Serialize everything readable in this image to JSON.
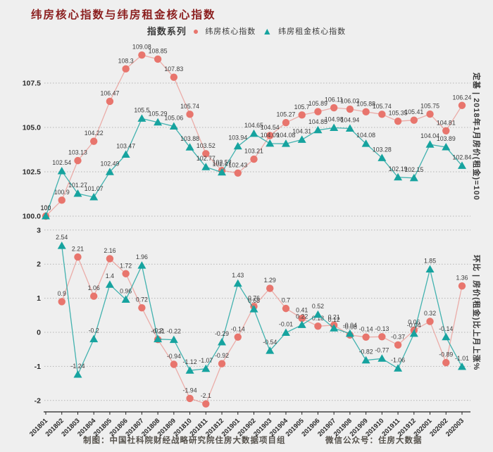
{
  "title": "纬房核心指数与纬房租金核心指数",
  "legend": {
    "label": "指数系列",
    "series": [
      {
        "name": "纬房核心指数",
        "marker": "circle-icon",
        "color": "#e8756d"
      },
      {
        "name": "纬房租金核心指数",
        "marker": "triangle-icon",
        "color": "#16a39f"
      }
    ]
  },
  "colors": {
    "background": "#efefef",
    "core": "#e8756d",
    "rent": "#16a39f",
    "grid": "#b5b5b5",
    "title": "#8b1e1e",
    "tick_text": "#2b2b2b",
    "value_label": "#3d3d3d"
  },
  "footer": {
    "left": "制图：中国社科院财经战略研究院住房大数据项目组",
    "right": "微信公众号：住房大数据"
  },
  "chart_data": [
    {
      "type": "line",
      "panel": "index",
      "right_label": "定基 | 2018年1月房价(租金)=100",
      "grid": "dotted",
      "legend_position": "top",
      "yticks": [
        "100.0",
        "102.5",
        "105.0",
        "107.5"
      ],
      "ylim": [
        99.5,
        109.8
      ],
      "x": [
        "201801",
        "201802",
        "201803",
        "201804",
        "201805",
        "201806",
        "201807",
        "201808",
        "201809",
        "201810",
        "201811",
        "201812",
        "201901",
        "201902",
        "201903",
        "201904",
        "201905",
        "201906",
        "201907",
        "201908",
        "201909",
        "201910",
        "201911",
        "201912",
        "202001",
        "202002",
        "202003"
      ],
      "series": [
        {
          "name": "纬房核心指数",
          "values": [
            100,
            100.9,
            103.13,
            104.22,
            106.47,
            108.3,
            109.08,
            108.85,
            107.83,
            105.74,
            103.52,
            102.57,
            102.43,
            103.21,
            104.54,
            105.27,
            105.7,
            105.89,
            106.11,
            106.03,
            105.88,
            105.74,
            105.35,
            105.41,
            105.75,
            104.81,
            106.24
          ]
        },
        {
          "name": "纬房租金核心指数",
          "values": [
            100,
            102.54,
            101.27,
            101.07,
            102.49,
            103.47,
            105.5,
            105.29,
            105.06,
            103.88,
            102.77,
            102.47,
            103.94,
            104.65,
            104.09,
            104.08,
            104.31,
            104.85,
            104.98,
            104.94,
            104.08,
            103.28,
            102.19,
            102.15,
            104.04,
            103.89,
            102.84
          ]
        }
      ]
    },
    {
      "type": "line",
      "panel": "mom",
      "right_label": "环比 | 房价(租金)比上月上涨%",
      "grid": "dotted",
      "yticks": [
        "-2",
        "-1",
        "0",
        "1",
        "2",
        "3"
      ],
      "ylim": [
        -2.4,
        3.2
      ],
      "x": [
        "201801",
        "201802",
        "201803",
        "201804",
        "201805",
        "201806",
        "201807",
        "201808",
        "201809",
        "201810",
        "201811",
        "201812",
        "201901",
        "201902",
        "201903",
        "201904",
        "201905",
        "201906",
        "201907",
        "201908",
        "201909",
        "201910",
        "201911",
        "201912",
        "202001",
        "202002",
        "202003"
      ],
      "series": [
        {
          "name": "纬房核心指数",
          "values": [
            null,
            0.9,
            2.21,
            1.06,
            2.16,
            1.72,
            0.72,
            -0.21,
            -0.94,
            -1.94,
            -2.1,
            -0.92,
            -0.14,
            0.76,
            1.29,
            0.7,
            0.41,
            0.18,
            0.21,
            -0.08,
            -0.14,
            -0.13,
            -0.37,
            0.06,
            0.32,
            -0.89,
            1.36
          ]
        },
        {
          "name": "纬房租金核心指数",
          "values": [
            null,
            2.54,
            -1.24,
            -0.2,
            1.4,
            0.96,
            1.96,
            -0.2,
            -0.22,
            -1.12,
            -1.07,
            -0.29,
            1.43,
            0.68,
            -0.54,
            -0.01,
            0.22,
            0.52,
            0.12,
            -0.04,
            -0.82,
            -0.77,
            -1.06,
            -0.04,
            1.85,
            -0.14,
            -1.01
          ]
        }
      ]
    }
  ]
}
